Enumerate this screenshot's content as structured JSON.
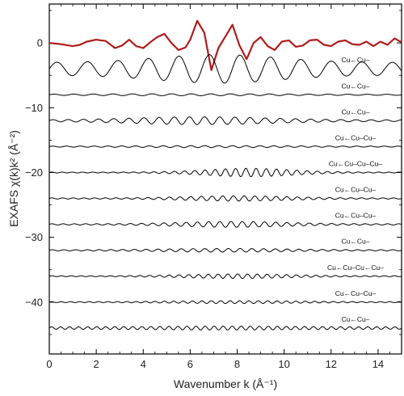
{
  "chart_data": {
    "type": "line",
    "xlabel": "Wavenumber k (Å⁻¹)",
    "ylabel": "EXAFS χ(k)k² (Å⁻²)",
    "xlim": [
      0,
      15
    ],
    "ylim": [
      -48,
      6
    ],
    "xticks": [
      0,
      2,
      4,
      6,
      8,
      10,
      12,
      14
    ],
    "yticks": [
      0,
      -10,
      -20,
      -30,
      -40
    ],
    "grid": false,
    "legend": "none",
    "colors": {
      "top_trace": "#b01c1c",
      "paths": "#000000"
    },
    "top_trace": {
      "offset": 0,
      "points": [
        [
          0,
          0
        ],
        [
          0.5,
          -0.2
        ],
        [
          1,
          -0.5
        ],
        [
          1.3,
          -0.3
        ],
        [
          1.6,
          0.2
        ],
        [
          2,
          0.5
        ],
        [
          2.4,
          0.3
        ],
        [
          2.8,
          -0.8
        ],
        [
          3.1,
          -0.4
        ],
        [
          3.4,
          0.5
        ],
        [
          3.7,
          -0.5
        ],
        [
          4,
          -0.8
        ],
        [
          4.3,
          0.1
        ],
        [
          4.6,
          0.9
        ],
        [
          4.9,
          1.4
        ],
        [
          5.2,
          0
        ],
        [
          5.5,
          -1.1
        ],
        [
          5.8,
          -0.7
        ],
        [
          6,
          0.5
        ],
        [
          6.3,
          3.4
        ],
        [
          6.6,
          1.6
        ],
        [
          6.9,
          -4.2
        ],
        [
          7.2,
          -0.8
        ],
        [
          7.5,
          1
        ],
        [
          7.8,
          2.8
        ],
        [
          8.1,
          -0.4
        ],
        [
          8.4,
          -2.5
        ],
        [
          8.7,
          0
        ],
        [
          9,
          0.9
        ],
        [
          9.3,
          -0.5
        ],
        [
          9.6,
          -1.1
        ],
        [
          9.9,
          0.2
        ],
        [
          10.2,
          0.4
        ],
        [
          10.5,
          -0.6
        ],
        [
          10.8,
          -0.4
        ],
        [
          11.1,
          0.4
        ],
        [
          11.4,
          0.5
        ],
        [
          11.7,
          -0.3
        ],
        [
          12,
          -0.5
        ],
        [
          12.3,
          0.2
        ],
        [
          12.6,
          0.4
        ],
        [
          12.9,
          -0.2
        ],
        [
          13.2,
          -0.3
        ],
        [
          13.5,
          0.2
        ],
        [
          13.8,
          -0.5
        ],
        [
          14.1,
          0.2
        ],
        [
          14.4,
          -0.3
        ],
        [
          14.7,
          0.7
        ],
        [
          15,
          0.1
        ]
      ]
    },
    "series": [
      {
        "name": "Cu←Cu–",
        "offset": -4,
        "amp": 2.2,
        "freq": 0.77,
        "center": 7.2,
        "width": 3.6,
        "floor": 0.45
      },
      {
        "name": "Cu←Cu–",
        "offset": -8,
        "amp": 0.15,
        "freq": 1.2,
        "center": 6,
        "width": 5,
        "floor": 0.5
      },
      {
        "name": "Cu←Cu–",
        "offset": -12,
        "amp": 0.6,
        "freq": 1.55,
        "center": 6.5,
        "width": 4,
        "floor": 0.2
      },
      {
        "name": "Cu←Cu–Cu–",
        "offset": -16,
        "amp": 0.15,
        "freq": 1.7,
        "center": 7,
        "width": 5,
        "floor": 0.4
      },
      {
        "name": "Cu←Cu–Cu–Cu–",
        "offset": -20,
        "amp": 0.65,
        "freq": 2.3,
        "center": 8.5,
        "width": 2.5,
        "floor": 0.1
      },
      {
        "name": "Cu←Cu–Cu–",
        "offset": -24,
        "amp": 0.4,
        "freq": 2.2,
        "center": 8,
        "width": 3,
        "floor": 0.2
      },
      {
        "name": "Cu←Cu–Cu–",
        "offset": -28,
        "amp": 0.45,
        "freq": 2.1,
        "center": 7.8,
        "width": 3,
        "floor": 0.2
      },
      {
        "name": "Cu←Cu–",
        "offset": -32,
        "amp": 0.28,
        "freq": 2.0,
        "center": 7.5,
        "width": 3.5,
        "floor": 0.3
      },
      {
        "name": "Cu←Cu–Cu←Cu–",
        "offset": -36,
        "amp": 0.35,
        "freq": 2.4,
        "center": 8,
        "width": 3,
        "floor": 0.2
      },
      {
        "name": "Cu←Cu–Cu–",
        "offset": -40,
        "amp": 0.22,
        "freq": 2.5,
        "center": 8,
        "width": 3.5,
        "floor": 0.3
      },
      {
        "name": "Cu←Cu–",
        "offset": -44,
        "amp": 0.3,
        "freq": 2.6,
        "center": 7.5,
        "width": 4,
        "floor": 0.6
      }
    ]
  }
}
